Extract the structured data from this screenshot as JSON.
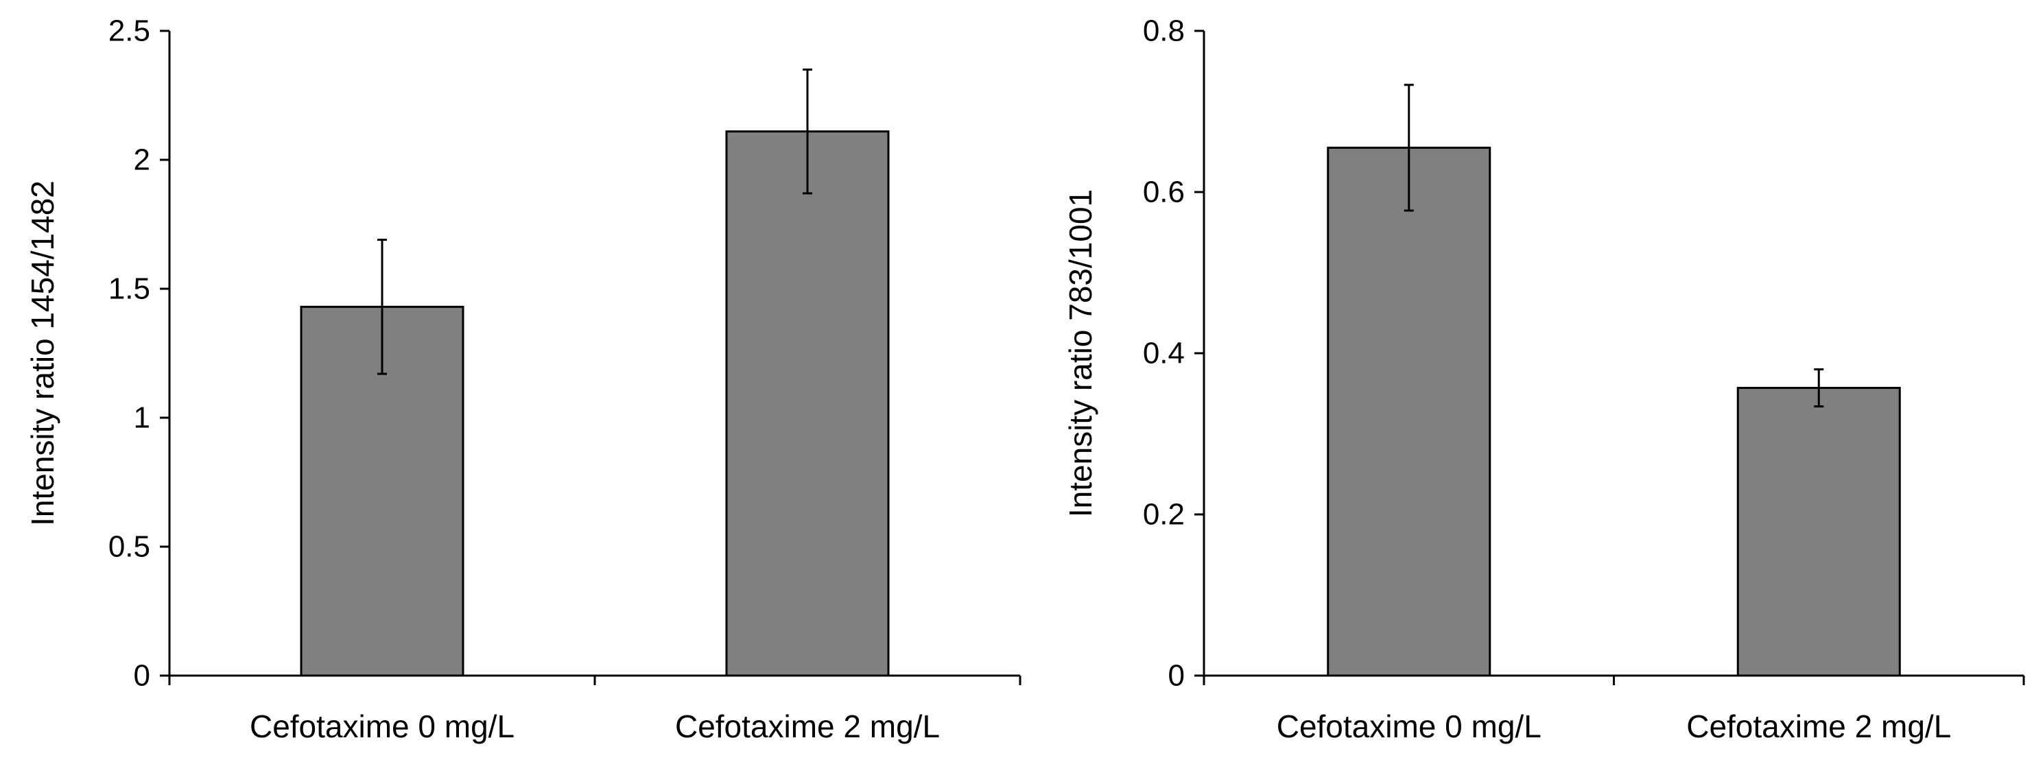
{
  "chart_data": [
    {
      "type": "bar",
      "title": "",
      "xlabel": "",
      "ylabel": "Intensity ratio 1454/1482",
      "categories": [
        "Cefotaxime 0 mg/L",
        "Cefotaxime 2 mg/L"
      ],
      "values": [
        1.43,
        2.11
      ],
      "errors": [
        0.26,
        0.24
      ],
      "ylim": [
        0,
        2.5
      ],
      "yticks": [
        0,
        0.5,
        1,
        1.5,
        2,
        2.5
      ],
      "ytick_labels": [
        "0",
        "0.5",
        "1",
        "1.5",
        "2",
        "2.5"
      ],
      "bar_color": "#808080",
      "grid": false,
      "legend": "none"
    },
    {
      "type": "bar",
      "title": "",
      "xlabel": "",
      "ylabel": "Intensity ratio 783/1001",
      "categories": [
        "Cefotaxime 0 mg/L",
        "Cefotaxime 2 mg/L"
      ],
      "values": [
        0.655,
        0.357
      ],
      "errors": [
        0.078,
        0.023
      ],
      "ylim": [
        0,
        0.8
      ],
      "yticks": [
        0,
        0.2,
        0.4,
        0.6,
        0.8
      ],
      "ytick_labels": [
        "0",
        "0.2",
        "0.4",
        "0.6",
        "0.8"
      ],
      "bar_color": "#808080",
      "grid": false,
      "legend": "none"
    }
  ]
}
